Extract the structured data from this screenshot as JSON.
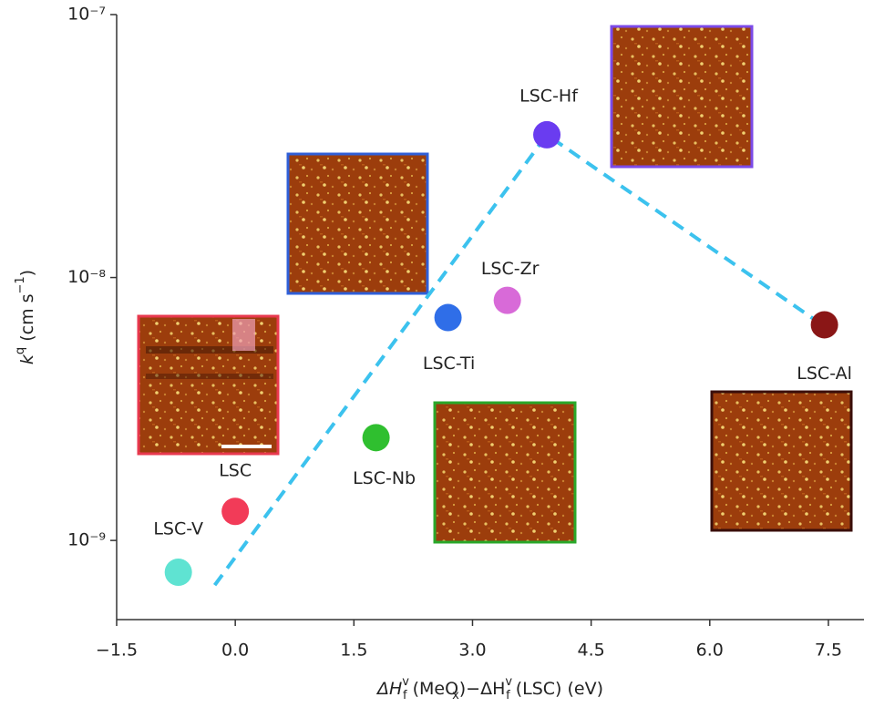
{
  "chart_data": {
    "type": "scatter",
    "log_y": true,
    "xlim": [
      -1.5,
      7.95
    ],
    "ylim": [
      5e-10,
      1e-07
    ],
    "xticks": [
      {
        "value": -1.5,
        "label": "−1.5"
      },
      {
        "value": 0,
        "label": "0.0"
      },
      1.5,
      {
        "value": 3,
        "label": "3.0"
      },
      4.5,
      {
        "value": 6,
        "label": "6.0"
      },
      7.5
    ],
    "yticks": [
      {
        "value": 1e-09,
        "label": "10⁻⁹"
      },
      {
        "value": 1e-08,
        "label": "10⁻⁸"
      },
      {
        "value": 1e-07,
        "label": "10⁻⁷"
      }
    ],
    "ylabel": [
      {
        "text": "k",
        "shift": "none"
      },
      {
        "text": "q",
        "shift": "sup"
      },
      {
        "text": " (cm s",
        "shift": "none"
      },
      {
        "text": "−1",
        "shift": "sup"
      },
      {
        "text": ")",
        "shift": "none"
      }
    ],
    "xlabel": [
      {
        "text": "ΔH",
        "shift": "none"
      },
      {
        "text": "v",
        "shift": "sup"
      },
      {
        "text": "f",
        "shift": "sub"
      },
      {
        "text": " (MeO",
        "shift": "none"
      },
      {
        "text": "x",
        "shift": "sub"
      },
      {
        "text": ")−ΔH",
        "shift": "none"
      },
      {
        "text": "v",
        "shift": "sup"
      },
      {
        "text": "f",
        "shift": "sub"
      },
      {
        "text": " (LSC) (eV)",
        "shift": "none"
      }
    ],
    "points": [
      {
        "name": "LSC-V",
        "color": "#5fe3d2",
        "x": -0.72,
        "y": 7.57e-10
      },
      {
        "name": "LSC",
        "color": "#f23b58",
        "x": 0.0,
        "y": 1.29e-09
      },
      {
        "name": "LSC-Nb",
        "color": "#2fbf2f",
        "x": 1.78,
        "y": 2.46e-09
      },
      {
        "name": "LSC-Ti",
        "color": "#2f6ee8",
        "x": 2.69,
        "y": 7.04e-09
      },
      {
        "name": "LSC-Zr",
        "color": "#d86ad8",
        "x": 3.44,
        "y": 8.19e-09
      },
      {
        "name": "LSC-Hf",
        "color": "#6a3cf0",
        "x": 3.94,
        "y": 3.49e-08
      },
      {
        "name": "LSC-Al",
        "color": "#8a1616",
        "x": 7.45,
        "y": 6.61e-09
      }
    ],
    "trend_line": {
      "color": "#3cc2ee",
      "x": [
        -0.26,
        3.94,
        7.42
      ],
      "y": [
        6.76e-10,
        3.49e-08,
        6.61e-09
      ]
    }
  }
}
